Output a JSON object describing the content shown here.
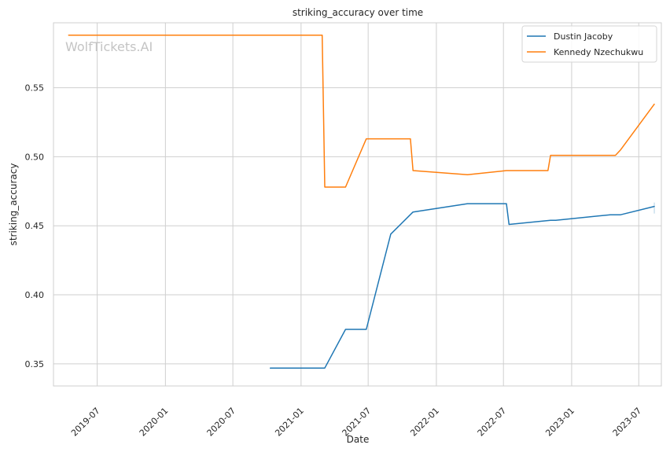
{
  "watermark": "WolfTickets.AI",
  "chart_data": {
    "type": "line",
    "title": "striking_accuracy over time",
    "xlabel": "Date",
    "ylabel": "striking_accuracy",
    "x_ticks": [
      "2019-07",
      "2020-01",
      "2020-07",
      "2021-01",
      "2021-07",
      "2022-01",
      "2022-07",
      "2023-01",
      "2023-07"
    ],
    "y_ticks": [
      0.35,
      0.4,
      0.45,
      0.5,
      0.55
    ],
    "y_tick_labels": [
      "0.35",
      "0.40",
      "0.45",
      "0.50",
      "0.55"
    ],
    "xlim": [
      "2019-03-05",
      "2023-08-31"
    ],
    "ylim": [
      0.334,
      0.597
    ],
    "grid": true,
    "legend_position": "top-right",
    "series": [
      {
        "name": "Dustin Jacoby",
        "color": "#1f77b4",
        "points": [
          [
            "2020-10-10",
            0.347
          ],
          [
            "2021-03-06",
            0.347
          ],
          [
            "2021-05-01",
            0.375
          ],
          [
            "2021-06-26",
            0.375
          ],
          [
            "2021-08-31",
            0.444
          ],
          [
            "2021-10-30",
            0.46
          ],
          [
            "2022-03-26",
            0.466
          ],
          [
            "2022-07-09",
            0.466
          ],
          [
            "2022-07-16",
            0.451
          ],
          [
            "2022-11-05",
            0.454
          ],
          [
            "2022-11-19",
            0.454
          ],
          [
            "2023-04-15",
            0.458
          ],
          [
            "2023-05-13",
            0.458
          ],
          [
            "2023-08-12",
            0.464
          ]
        ]
      },
      {
        "name": "Kennedy Nzechukwu",
        "color": "#ff7f0e",
        "points": [
          [
            "2019-04-15",
            0.588
          ],
          [
            "2021-02-27",
            0.588
          ],
          [
            "2021-03-06",
            0.478
          ],
          [
            "2021-05-01",
            0.478
          ],
          [
            "2021-06-26",
            0.513
          ],
          [
            "2021-10-23",
            0.513
          ],
          [
            "2021-10-30",
            0.49
          ],
          [
            "2022-03-26",
            0.487
          ],
          [
            "2022-07-09",
            0.49
          ],
          [
            "2022-10-29",
            0.49
          ],
          [
            "2022-11-05",
            0.501
          ],
          [
            "2023-04-29",
            0.501
          ],
          [
            "2023-05-13",
            0.505
          ],
          [
            "2023-08-12",
            0.538
          ]
        ]
      }
    ]
  }
}
